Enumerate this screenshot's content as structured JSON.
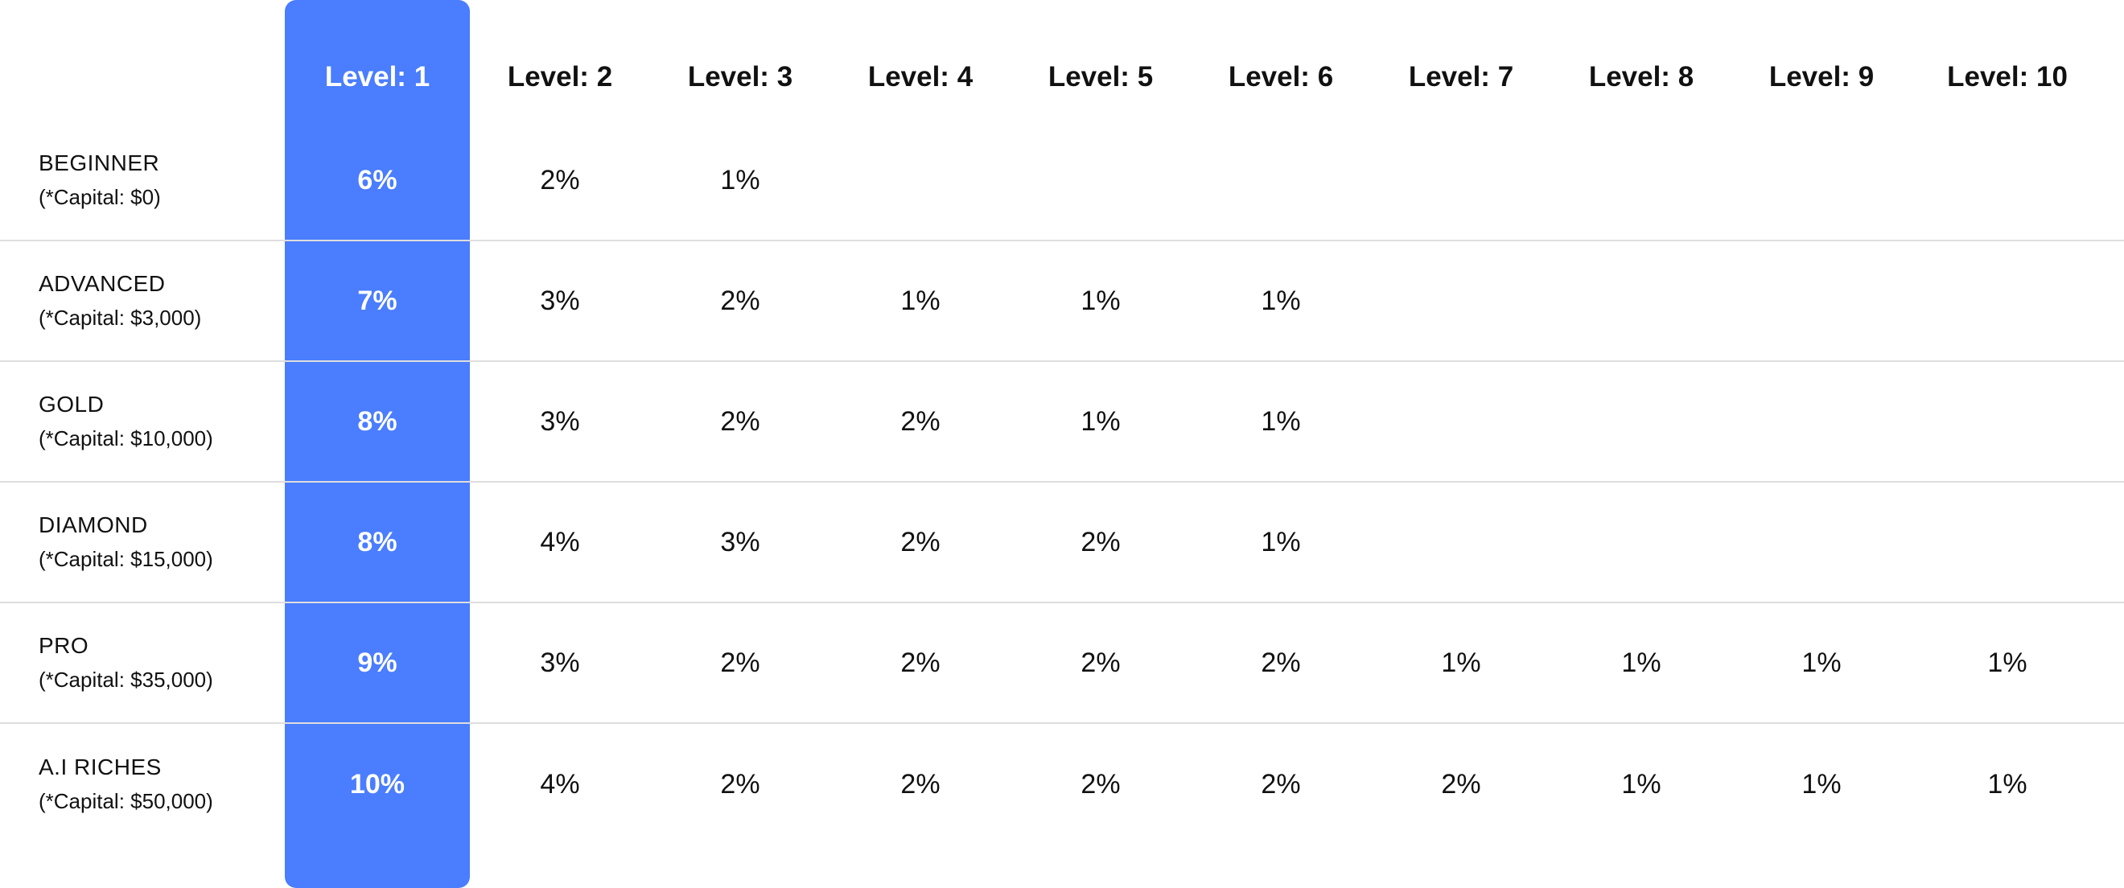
{
  "colors": {
    "highlight": "#4a7dff",
    "text": "#111111",
    "divider": "#dedede"
  },
  "levels": [
    "Level: 1",
    "Level: 2",
    "Level: 3",
    "Level: 4",
    "Level: 5",
    "Level: 6",
    "Level: 7",
    "Level: 8",
    "Level: 9",
    "Level: 10"
  ],
  "tiers": [
    {
      "name": "BEGINNER",
      "capital": "(*Capital: $0)",
      "values": [
        "6%",
        "2%",
        "1%",
        "",
        "",
        "",
        "",
        "",
        "",
        ""
      ]
    },
    {
      "name": "ADVANCED",
      "capital": "(*Capital: $3,000)",
      "values": [
        "7%",
        "3%",
        "2%",
        "1%",
        "1%",
        "1%",
        "",
        "",
        "",
        ""
      ]
    },
    {
      "name": "GOLD",
      "capital": "(*Capital: $10,000)",
      "values": [
        "8%",
        "3%",
        "2%",
        "2%",
        "1%",
        "1%",
        "",
        "",
        "",
        ""
      ]
    },
    {
      "name": "DIAMOND",
      "capital": "(*Capital: $15,000)",
      "values": [
        "8%",
        "4%",
        "3%",
        "2%",
        "2%",
        "1%",
        "",
        "",
        "",
        ""
      ]
    },
    {
      "name": "PRO",
      "capital": "(*Capital: $35,000)",
      "values": [
        "9%",
        "3%",
        "2%",
        "2%",
        "2%",
        "2%",
        "1%",
        "1%",
        "1%",
        "1%"
      ]
    },
    {
      "name": "A.I RICHES",
      "capital": "(*Capital: $50,000)",
      "values": [
        "10%",
        "4%",
        "2%",
        "2%",
        "2%",
        "2%",
        "2%",
        "1%",
        "1%",
        "1%"
      ]
    }
  ]
}
